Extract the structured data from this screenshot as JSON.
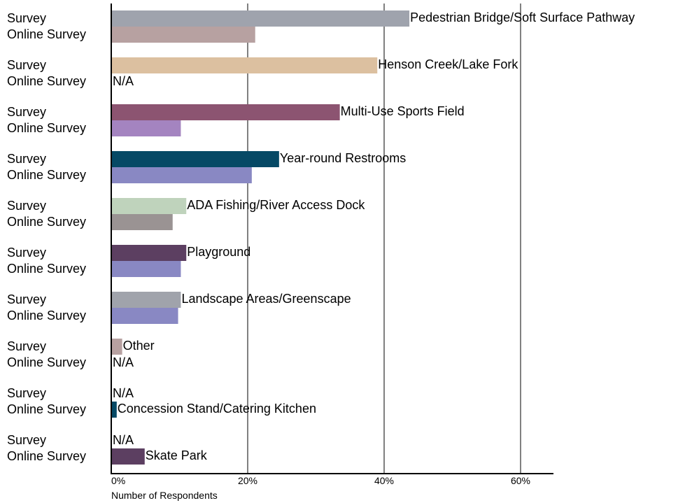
{
  "chart_data": {
    "type": "bar",
    "orientation": "horizontal",
    "xlabel": "Number of Respondents",
    "xlim": [
      0,
      65
    ],
    "x_ticks": [
      "0%",
      "20%",
      "40%",
      "60%"
    ],
    "x_tick_values": [
      0,
      20,
      40,
      60
    ],
    "grid": "vertical",
    "series_labels": [
      "Survey",
      "Online Survey"
    ],
    "na_label": "N/A",
    "categories": [
      {
        "label": "Pedestrian Bridge/Soft Surface Pathway",
        "values": [
          43.7,
          21.1
        ],
        "colors": [
          "#9fa3ad",
          "#b7a1a1"
        ]
      },
      {
        "label": "Henson Creek/Lake Fork",
        "values": [
          39.0,
          null
        ],
        "colors": [
          "#dcc0a0",
          "#b7a1a1"
        ]
      },
      {
        "label": "Multi-Use Sports Field",
        "values": [
          33.5,
          10.2
        ],
        "colors": [
          "#8c5471",
          "#a484c0"
        ]
      },
      {
        "label": "Year-round Restrooms",
        "values": [
          24.6,
          20.6
        ],
        "colors": [
          "#064965",
          "#8988c3"
        ]
      },
      {
        "label": "ADA Fishing/River Access Dock",
        "values": [
          11.0,
          9.0
        ],
        "colors": [
          "#bfd3bc",
          "#9a9393"
        ]
      },
      {
        "label": "Playground",
        "values": [
          11.0,
          10.2
        ],
        "colors": [
          "#5c3f61",
          "#8988c3"
        ]
      },
      {
        "label": "Landscape Areas/Greenscape",
        "values": [
          10.2,
          9.8
        ],
        "colors": [
          "#a0a3ab",
          "#8988c3"
        ]
      },
      {
        "label": "Other",
        "values": [
          1.6,
          null
        ],
        "colors": [
          "#b7a1a1",
          "#8988c3"
        ]
      },
      {
        "label": "Concession Stand/Catering Kitchen",
        "values": [
          null,
          0.8
        ],
        "colors": [
          "#064965",
          "#064965"
        ]
      },
      {
        "label": "Skate Park",
        "values": [
          null,
          4.9
        ],
        "colors": [
          "#5c3f61",
          "#5c3f61"
        ]
      }
    ]
  }
}
